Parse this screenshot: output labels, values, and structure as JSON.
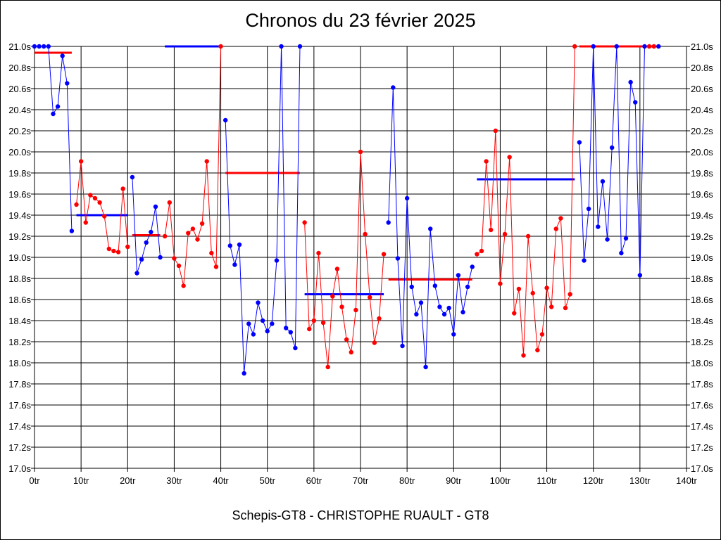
{
  "chart_data": {
    "type": "line",
    "title": "Chronos du 23 février 2025",
    "footer": "Schepis-GT8 - CHRISTOPHE RUAULT - GT8",
    "xlabel": "",
    "ylabel": "",
    "xlim": [
      0,
      140
    ],
    "ylim": [
      17.0,
      21.0
    ],
    "x_ticks": [
      0,
      10,
      20,
      30,
      40,
      50,
      60,
      70,
      80,
      90,
      100,
      110,
      120,
      130,
      140
    ],
    "x_tick_labels": [
      "0tr",
      "10tr",
      "20tr",
      "30tr",
      "40tr",
      "50tr",
      "60tr",
      "70tr",
      "80tr",
      "90tr",
      "100tr",
      "110tr",
      "120tr",
      "130tr",
      "140tr"
    ],
    "y_ticks": [
      17.0,
      17.2,
      17.4,
      17.6,
      17.8,
      18.0,
      18.2,
      18.4,
      18.6,
      18.8,
      19.0,
      19.2,
      19.4,
      19.6,
      19.8,
      20.0,
      20.2,
      20.4,
      20.6,
      20.8,
      21.0
    ],
    "y_tick_labels": [
      "17.0s",
      "17.2s",
      "17.4s",
      "17.6s",
      "17.8s",
      "18.0s",
      "18.2s",
      "18.4s",
      "18.6s",
      "18.8s",
      "19.0s",
      "19.2s",
      "19.4s",
      "19.6s",
      "19.8s",
      "20.0s",
      "20.2s",
      "20.4s",
      "20.6s",
      "20.8s",
      "21.0s"
    ],
    "grid": true,
    "series": [
      {
        "color": "#0000ff",
        "x": [
          0,
          1,
          2,
          3,
          4,
          5,
          6,
          7,
          8
        ],
        "y": [
          21.0,
          21.0,
          21.0,
          21.0,
          20.36,
          20.43,
          20.91,
          20.65,
          19.25
        ]
      },
      {
        "color": "#ff0000",
        "x": [
          9,
          10,
          11,
          12,
          13,
          14,
          15,
          16,
          17,
          18,
          19,
          20
        ],
        "y": [
          19.5,
          19.91,
          19.33,
          19.59,
          19.56,
          19.52,
          19.39,
          19.08,
          19.06,
          19.05,
          19.65,
          19.1
        ]
      },
      {
        "color": "#0000ff",
        "x": [
          21,
          22,
          23,
          24,
          25,
          26,
          27
        ],
        "y": [
          19.76,
          18.85,
          18.98,
          19.14,
          19.24,
          19.48,
          19.0
        ]
      },
      {
        "color": "#ff0000",
        "x": [
          28,
          29,
          30,
          31,
          32,
          33,
          34,
          35,
          36,
          37,
          38,
          39,
          40
        ],
        "y": [
          19.2,
          19.52,
          18.99,
          18.92,
          18.73,
          19.23,
          19.27,
          19.17,
          19.32,
          19.91,
          19.04,
          18.91,
          21.0
        ]
      },
      {
        "color": "#0000ff",
        "x": [
          41,
          42,
          43,
          44,
          45,
          46,
          47,
          48,
          49,
          50,
          51,
          52,
          53,
          54,
          55,
          56,
          57
        ],
        "y": [
          20.3,
          19.11,
          18.93,
          19.12,
          17.9,
          18.37,
          18.27,
          18.57,
          18.4,
          18.3,
          18.37,
          18.97,
          21.0,
          18.33,
          18.29,
          18.14,
          21.0
        ]
      },
      {
        "color": "#ff0000",
        "x": [
          58,
          59,
          60,
          61,
          62,
          63,
          64,
          65,
          66,
          67,
          68,
          69,
          70,
          71,
          72,
          73,
          74,
          75
        ],
        "y": [
          19.33,
          18.32,
          18.4,
          19.04,
          18.38,
          17.96,
          18.63,
          18.89,
          18.53,
          18.22,
          18.1,
          18.5,
          20.0,
          19.22,
          18.62,
          18.19,
          18.42,
          19.03
        ]
      },
      {
        "color": "#0000ff",
        "x": [
          76,
          77,
          78,
          79,
          80,
          81,
          82,
          83,
          84,
          85,
          86,
          87,
          88,
          89,
          90,
          91,
          92,
          93,
          94
        ],
        "y": [
          19.33,
          20.61,
          18.99,
          18.16,
          19.56,
          18.72,
          18.46,
          18.57,
          17.96,
          19.27,
          18.73,
          18.53,
          18.46,
          18.52,
          18.27,
          18.83,
          18.48,
          18.72,
          18.91
        ]
      },
      {
        "color": "#ff0000",
        "x": [
          95,
          96,
          97,
          98,
          99,
          100,
          101,
          102,
          103,
          104,
          105,
          106,
          107,
          108,
          109,
          110,
          111,
          112,
          113,
          114,
          115,
          116
        ],
        "y": [
          19.03,
          19.06,
          19.91,
          19.26,
          20.2,
          18.75,
          19.22,
          19.95,
          18.47,
          18.7,
          18.07,
          19.2,
          18.66,
          18.12,
          18.27,
          18.71,
          18.53,
          19.27,
          19.37,
          18.52,
          18.65,
          21.0
        ]
      },
      {
        "color": "#0000ff",
        "x": [
          117,
          118,
          119,
          120,
          121,
          122,
          123,
          124,
          125,
          126,
          127,
          128,
          129,
          130,
          131
        ],
        "y": [
          20.09,
          18.97,
          19.46,
          21.0,
          19.29,
          19.72,
          19.17,
          20.04,
          21.0,
          19.04,
          19.18,
          20.66,
          20.47,
          18.83,
          21.0
        ]
      },
      {
        "color": "#ff0000",
        "x": [
          132,
          133
        ],
        "y": [
          21.0,
          21.0
        ]
      },
      {
        "color": "#0000ff",
        "x": [
          134
        ],
        "y": [
          21.0
        ]
      }
    ],
    "averages": [
      {
        "color": "#ff0000",
        "x0": 0,
        "x1": 8,
        "y": 20.94
      },
      {
        "color": "#0000ff",
        "x0": 9,
        "x1": 20,
        "y": 19.4
      },
      {
        "color": "#ff0000",
        "x0": 21,
        "x1": 27,
        "y": 19.21
      },
      {
        "color": "#0000ff",
        "x0": 28,
        "x1": 40,
        "y": 21.0
      },
      {
        "color": "#ff0000",
        "x0": 41,
        "x1": 57,
        "y": 19.8
      },
      {
        "color": "#0000ff",
        "x0": 58,
        "x1": 75,
        "y": 18.65
      },
      {
        "color": "#ff0000",
        "x0": 76,
        "x1": 94,
        "y": 18.79
      },
      {
        "color": "#0000ff",
        "x0": 95,
        "x1": 116,
        "y": 19.74
      },
      {
        "color": "#ff0000",
        "x0": 117,
        "x1": 134,
        "y": 21.0
      }
    ]
  }
}
